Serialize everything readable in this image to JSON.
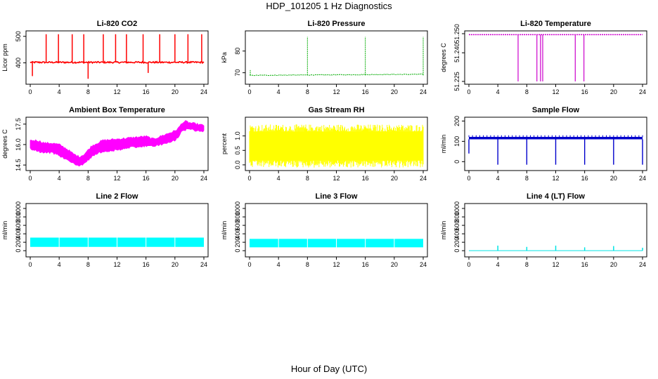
{
  "figure": {
    "title": "HDP_101205  1 Hz Diagnostics",
    "xlabel": "Hour of Day (UTC)"
  },
  "chart_data": [
    {
      "id": "co2",
      "type": "line",
      "title": "Li-820 CO2",
      "ylabel": "Licor ppm",
      "color": "#ff0000",
      "xlim": [
        0,
        24
      ],
      "xticks": [
        0,
        4,
        8,
        12,
        16,
        20,
        24
      ],
      "ylim": [
        330,
        510
      ],
      "yticks": [
        400,
        500
      ],
      "series": [
        {
          "name": "CO2",
          "baseline": 402,
          "noise": 3,
          "spikes": [
            {
              "x": 2.2,
              "y": 508
            },
            {
              "x": 3.9,
              "y": 508
            },
            {
              "x": 5.8,
              "y": 508
            },
            {
              "x": 7.4,
              "y": 508
            },
            {
              "x": 10.1,
              "y": 508
            },
            {
              "x": 11.8,
              "y": 508
            },
            {
              "x": 13.3,
              "y": 508
            },
            {
              "x": 15.6,
              "y": 508
            },
            {
              "x": 17.9,
              "y": 508
            },
            {
              "x": 20.0,
              "y": 508
            },
            {
              "x": 21.8,
              "y": 508
            },
            {
              "x": 23.7,
              "y": 508
            },
            {
              "x": 0.3,
              "y": 350
            },
            {
              "x": 8.0,
              "y": 340
            },
            {
              "x": 16.3,
              "y": 362
            }
          ]
        }
      ]
    },
    {
      "id": "pressure",
      "type": "line",
      "title": "Li-820 Pressure",
      "ylabel": "kPa",
      "color": "#00aa00",
      "xlim": [
        0,
        24
      ],
      "xticks": [
        0,
        4,
        8,
        12,
        16,
        20,
        24
      ],
      "ylim": [
        66,
        88
      ],
      "yticks": [
        70,
        80
      ],
      "series": [
        {
          "name": "Pressure",
          "start": 68.8,
          "end": 69.3,
          "noise": 0.3,
          "spikes": [
            {
              "x": 8.0,
              "y": 86.5
            },
            {
              "x": 16.0,
              "y": 86.5
            },
            {
              "x": 24.0,
              "y": 86.5
            },
            {
              "x": 0.1,
              "y": 71.2
            }
          ]
        }
      ]
    },
    {
      "id": "licor_temp",
      "type": "line",
      "title": "Li-820 Temperature",
      "ylabel": "degrees C",
      "color": "#cc00cc",
      "xlim": [
        0,
        24
      ],
      "xticks": [
        0,
        4,
        8,
        12,
        16,
        20,
        24
      ],
      "ylim": [
        51.225,
        51.25
      ],
      "yticks": [
        51.225,
        51.24,
        51.25
      ],
      "series": [
        {
          "name": "Temperature",
          "baseline": 51.2495,
          "drops": [
            {
              "x": 6.8,
              "y": 51.225
            },
            {
              "x": 9.4,
              "y": 51.225
            },
            {
              "x": 9.9,
              "y": 51.225
            },
            {
              "x": 10.2,
              "y": 51.225
            },
            {
              "x": 14.7,
              "y": 51.225
            },
            {
              "x": 15.9,
              "y": 51.225
            }
          ]
        }
      ]
    },
    {
      "id": "box_temp",
      "type": "area",
      "title": "Ambient Box Temperature",
      "ylabel": "degrees C",
      "color": "#ff00ff",
      "xlim": [
        0,
        24
      ],
      "xticks": [
        0,
        4,
        8,
        12,
        16,
        20,
        24
      ],
      "ylim": [
        14.3,
        17.8
      ],
      "yticks": [
        14.5,
        16.0,
        17.5
      ],
      "series": [
        {
          "name": "Box Temp",
          "x": [
            0,
            1,
            2,
            3,
            4,
            5,
            6,
            6.8,
            7.5,
            8.5,
            10,
            12,
            14,
            16,
            17,
            18,
            19,
            20,
            20.5,
            21,
            21.5,
            22,
            23,
            24
          ],
          "low": [
            15.7,
            15.5,
            15.4,
            15.4,
            15.2,
            14.9,
            14.6,
            14.4,
            14.6,
            15.1,
            15.5,
            15.6,
            15.8,
            15.9,
            15.9,
            16.0,
            16.1,
            16.3,
            16.6,
            17.0,
            17.1,
            17.2,
            17.0,
            17.0
          ],
          "high": [
            16.3,
            16.3,
            16.1,
            16.1,
            16.0,
            15.7,
            15.3,
            15.1,
            15.3,
            15.9,
            16.3,
            16.4,
            16.5,
            16.6,
            16.4,
            16.6,
            16.8,
            17.0,
            17.2,
            17.6,
            17.7,
            17.6,
            17.5,
            17.4
          ]
        }
      ]
    },
    {
      "id": "rh",
      "type": "area",
      "title": "Gas Stream RH",
      "ylabel": "percent",
      "color": "#ffff00",
      "xlim": [
        0,
        24
      ],
      "xticks": [
        0,
        4,
        8,
        12,
        16,
        20,
        24
      ],
      "ylim": [
        -0.1,
        1.55
      ],
      "yticks": [
        0.0,
        0.5,
        1.0
      ],
      "series": [
        {
          "name": "RH",
          "low": 0.15,
          "high": 1.15,
          "noise": 0.25
        }
      ]
    },
    {
      "id": "sample_flow",
      "type": "line",
      "title": "Sample Flow",
      "ylabel": "ml/min",
      "color": "#0000cc",
      "xlim": [
        0,
        24
      ],
      "xticks": [
        0,
        4,
        8,
        12,
        16,
        20,
        24
      ],
      "ylim": [
        -30,
        205
      ],
      "yticks": [
        0,
        100,
        200
      ],
      "series": [
        {
          "name": "Sample Flow",
          "low": 110,
          "high": 122,
          "noise_top": 130,
          "dips": [
            {
              "x": 0.0,
              "y": 40
            },
            {
              "x": 4.0,
              "y": -15
            },
            {
              "x": 8.0,
              "y": -15
            },
            {
              "x": 12.0,
              "y": -15
            },
            {
              "x": 16.0,
              "y": -15
            },
            {
              "x": 20.0,
              "y": -15
            },
            {
              "x": 24.0,
              "y": -15
            }
          ]
        }
      ]
    },
    {
      "id": "line2",
      "type": "area",
      "title": "Line 2 Flow",
      "ylabel": "ml/min",
      "color": "#00ffff",
      "xlim": [
        0,
        24
      ],
      "xticks": [
        0,
        4,
        8,
        12,
        16,
        20,
        24
      ],
      "ylim": [
        -80,
        1050
      ],
      "yticks": [
        0,
        200,
        400,
        600,
        800,
        1000
      ],
      "series": [
        {
          "name": "Line 2",
          "low": 90,
          "high": 310,
          "gaps": [
            4,
            8,
            12,
            16,
            20
          ]
        }
      ]
    },
    {
      "id": "line3",
      "type": "area",
      "title": "Line 3 Flow",
      "ylabel": "ml/min",
      "color": "#00ffff",
      "xlim": [
        0,
        24
      ],
      "xticks": [
        0,
        4,
        8,
        12,
        16,
        20,
        24
      ],
      "ylim": [
        -80,
        1050
      ],
      "yticks": [
        0,
        200,
        400,
        600,
        800,
        1000
      ],
      "series": [
        {
          "name": "Line 3",
          "low": 80,
          "high": 280,
          "gaps": [
            4,
            8,
            12,
            16,
            20
          ]
        }
      ]
    },
    {
      "id": "line4",
      "type": "line",
      "title": "Line 4 (LT) Flow",
      "ylabel": "ml/min",
      "color": "#00e5e5",
      "xlim": [
        0,
        24
      ],
      "xticks": [
        0,
        4,
        8,
        12,
        16,
        20,
        24
      ],
      "ylim": [
        -80,
        1050
      ],
      "yticks": [
        0,
        200,
        400,
        600,
        800,
        1000
      ],
      "series": [
        {
          "name": "Line 4",
          "baseline": 0,
          "spikes": [
            {
              "x": 4.0,
              "y": 120
            },
            {
              "x": 8.0,
              "y": 90
            },
            {
              "x": 12.0,
              "y": 120
            },
            {
              "x": 16.0,
              "y": 80
            },
            {
              "x": 20.0,
              "y": 110
            },
            {
              "x": 24.0,
              "y": 70
            }
          ]
        }
      ]
    }
  ]
}
